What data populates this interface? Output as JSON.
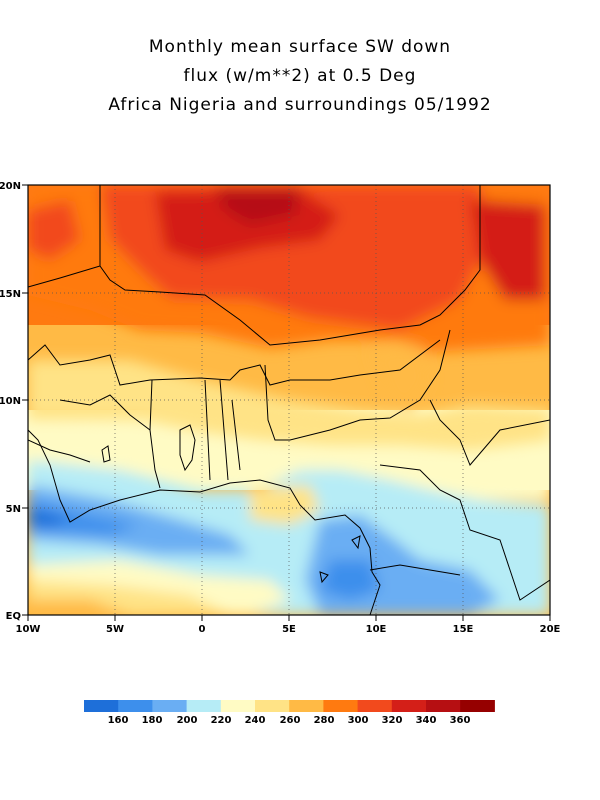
{
  "title": {
    "line1": "Monthly mean surface SW down",
    "line2": "flux (w/m**2) at 0.5 Deg",
    "line3": "Africa Nigeria and surroundings 05/1992"
  },
  "map": {
    "lon_range": [
      -10,
      20
    ],
    "lat_range": [
      0,
      20
    ],
    "lon_ticks": [
      {
        "value": -10,
        "label": "10W"
      },
      {
        "value": -5,
        "label": "5W"
      },
      {
        "value": 0,
        "label": "0"
      },
      {
        "value": 5,
        "label": "5E"
      },
      {
        "value": 10,
        "label": "10E"
      },
      {
        "value": 15,
        "label": "15E"
      },
      {
        "value": 20,
        "label": "20E"
      }
    ],
    "lat_ticks": [
      {
        "value": 0,
        "label": "EQ"
      },
      {
        "value": 5,
        "label": "5N"
      },
      {
        "value": 10,
        "label": "10N"
      },
      {
        "value": 15,
        "label": "15N"
      },
      {
        "value": 20,
        "label": "20N"
      }
    ],
    "grid": "dotted"
  },
  "colorbar": {
    "labels": [
      "160",
      "180",
      "200",
      "220",
      "240",
      "260",
      "280",
      "300",
      "320",
      "340",
      "360"
    ],
    "colors": [
      "#1e6fd9",
      "#3d8fec",
      "#6aaef3",
      "#b6ecf6",
      "#fffbc4",
      "#ffe386",
      "#ffba45",
      "#ff7a10",
      "#f24a1d",
      "#d41f18",
      "#b60f12",
      "#960000"
    ]
  }
}
